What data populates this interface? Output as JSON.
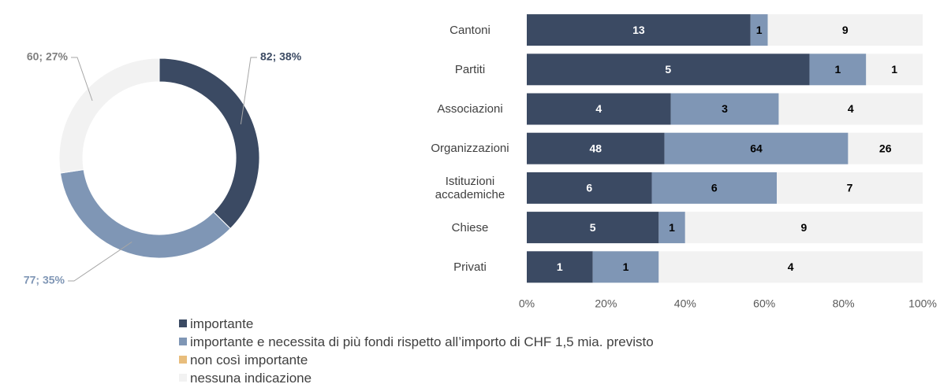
{
  "chart_data": [
    {
      "type": "donut",
      "categories": [
        "importante",
        "importante e necessita di più fondi rispetto all’importo di CHF 1,5 mia. previsto",
        "nessuna indicazione"
      ],
      "values": [
        82,
        77,
        60
      ],
      "value_labels": [
        "82; 38%",
        "77; 35%",
        "60; 27%"
      ],
      "colors": [
        "#3b4a63",
        "#7f96b5",
        "#f2f2f2"
      ]
    },
    {
      "type": "stacked_bar_100",
      "categories": [
        "Cantoni",
        "Partiti",
        "Associazioni",
        "Organizzazioni",
        "Istituzioni accademiche",
        "Chiese",
        "Privati"
      ],
      "series": [
        {
          "name": "importante",
          "color": "#3b4a63",
          "values": [
            13,
            5,
            4,
            48,
            6,
            5,
            1
          ]
        },
        {
          "name": "importante e necessita di più fondi rispetto all’importo di CHF 1,5 mia. previsto",
          "color": "#7f96b5",
          "values": [
            1,
            1,
            3,
            64,
            6,
            1,
            1
          ]
        },
        {
          "name": "non così importante",
          "color": "#e8bd7c",
          "values": [
            0,
            0,
            0,
            0,
            0,
            0,
            0
          ]
        },
        {
          "name": "nessuna indicazione",
          "color": "#f2f2f2",
          "values": [
            9,
            1,
            4,
            26,
            7,
            9,
            4
          ]
        }
      ],
      "xlim": [
        0,
        100
      ],
      "xticks": [
        {
          "value": 0,
          "label": "0%"
        },
        {
          "value": 20,
          "label": "20%"
        },
        {
          "value": 40,
          "label": "40%"
        },
        {
          "value": 60,
          "label": "60%"
        },
        {
          "value": 80,
          "label": "80%"
        },
        {
          "value": 100,
          "label": "100%"
        }
      ],
      "legend": "bottom"
    }
  ]
}
